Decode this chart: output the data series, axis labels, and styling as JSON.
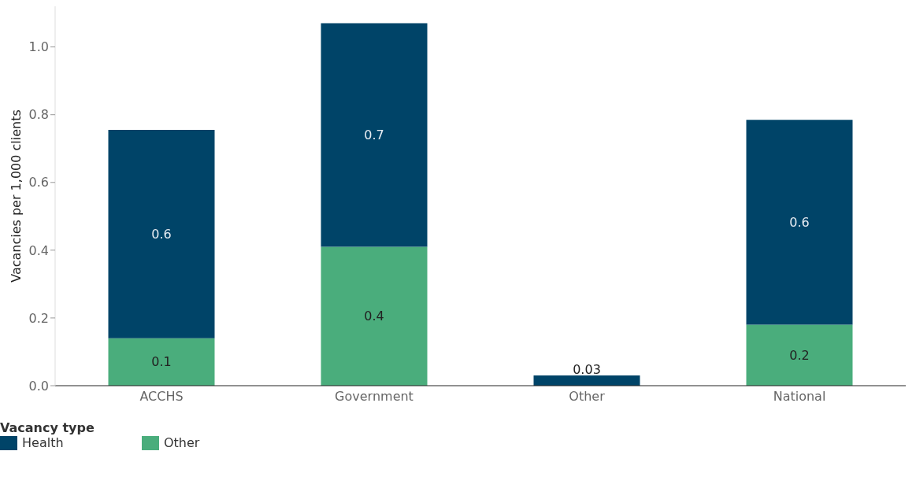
{
  "chart_data": {
    "type": "bar",
    "stacked": true,
    "ylabel": "Vacancies per 1,000 clients",
    "legend_title": "Vacancy type",
    "legend": "bottom left",
    "categories": [
      "ACCHS",
      "Government",
      "Other",
      "National"
    ],
    "ylim": [
      0,
      1.12
    ],
    "yticks": [
      {
        "value": 0,
        "label": "0.0"
      },
      0.2,
      0.4,
      0.6,
      0.8,
      {
        "value": 1,
        "label": "1.0"
      }
    ],
    "series": [
      {
        "name": "Other",
        "color": "#4aad7c",
        "values": [
          0.14,
          0.41,
          null,
          0.18
        ],
        "value_labels": [
          "0.1",
          "0.4",
          null,
          "0.2"
        ]
      },
      {
        "name": "Health",
        "color": "#004468",
        "values": [
          0.615,
          0.66,
          0.03,
          0.605
        ],
        "value_labels": [
          "0.6",
          "0.7",
          "0.03",
          "0.6"
        ]
      }
    ]
  }
}
